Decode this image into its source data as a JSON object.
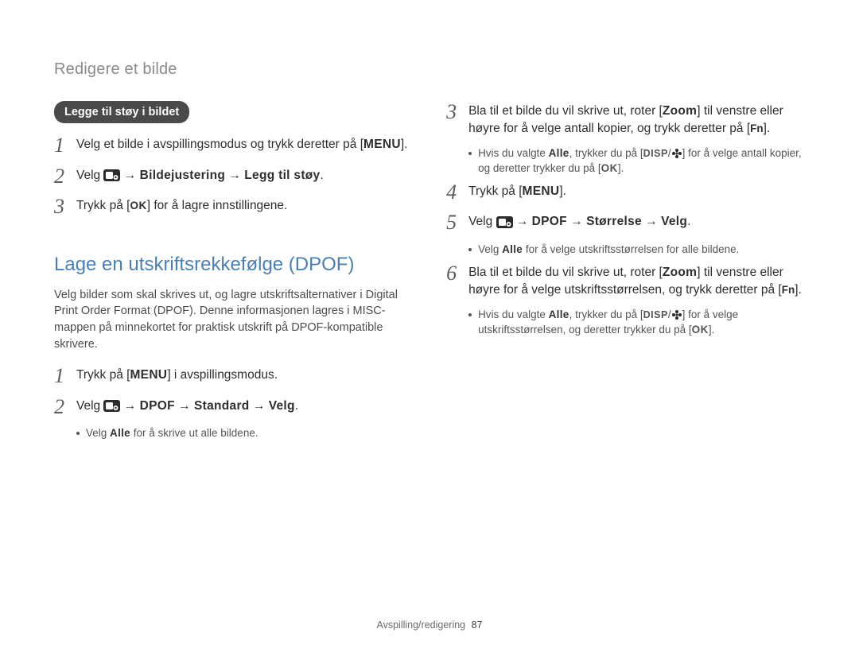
{
  "header": {
    "title": "Redigere et bilde"
  },
  "left": {
    "pill": "Legge til støy i bildet",
    "steps": [
      {
        "num": "1",
        "parts": [
          "Velg et bilde i avspillingsmodus og trykk deretter på [",
          {
            "b": "MENU"
          },
          "]."
        ]
      },
      {
        "num": "2",
        "parts": [
          "Velg ",
          {
            "icon": "tool"
          },
          " → ",
          {
            "b": "Bildejustering"
          },
          " → ",
          {
            "b": "Legg til støy"
          },
          "."
        ]
      },
      {
        "num": "3",
        "parts": [
          "Trykk på [",
          {
            "icon": "ok"
          },
          "] for å lagre innstillingene."
        ]
      }
    ],
    "section": {
      "title": "Lage en utskriftsrekkefølge (DPOF)",
      "intro": "Velg bilder som skal skrives ut, og lagre utskriftsalternativer i Digital Print Order Format (DPOF). Denne informasjonen lagres i MISC-mappen på minnekortet for praktisk utskrift på DPOF-kompatible skrivere.",
      "steps": [
        {
          "num": "1",
          "parts": [
            "Trykk på [",
            {
              "b": "MENU"
            },
            "] i avspillingsmodus."
          ]
        },
        {
          "num": "2",
          "parts": [
            "Velg ",
            {
              "icon": "tool2"
            },
            " → ",
            {
              "b": "DPOF"
            },
            " → ",
            {
              "b": "Standard"
            },
            " → ",
            {
              "b": "Velg"
            },
            "."
          ],
          "sub": [
            [
              "Velg ",
              {
                "b": "Alle"
              },
              " for å skrive ut alle bildene."
            ]
          ]
        }
      ]
    }
  },
  "right": {
    "steps": [
      {
        "num": "3",
        "parts": [
          "Bla til et bilde du vil skrive ut, roter [",
          {
            "b": "Zoom"
          },
          "] til venstre eller høyre for å velge antall kopier, og trykk deretter på [",
          {
            "icon": "fn"
          },
          "]."
        ],
        "sub": [
          [
            "Hvis du valgte ",
            {
              "b": "Alle"
            },
            ", trykker du på [",
            {
              "icon": "disp"
            },
            "/",
            {
              "icon": "flower"
            },
            "] for å velge antall kopier, og deretter trykker du på [",
            {
              "icon": "ok"
            },
            "]."
          ]
        ]
      },
      {
        "num": "4",
        "parts": [
          "Trykk på [",
          {
            "b": "MENU"
          },
          "]."
        ]
      },
      {
        "num": "5",
        "parts": [
          "Velg ",
          {
            "icon": "tool2"
          },
          " → ",
          {
            "b": "DPOF"
          },
          " → ",
          {
            "b": "Størrelse"
          },
          " → ",
          {
            "b": "Velg"
          },
          "."
        ],
        "sub": [
          [
            "Velg ",
            {
              "b": "Alle"
            },
            " for å velge utskriftsstørrelsen for alle bildene."
          ]
        ]
      },
      {
        "num": "6",
        "parts": [
          "Bla til et bilde du vil skrive ut, roter [",
          {
            "b": "Zoom"
          },
          "] til venstre eller høyre for å velge utskriftsstørrelsen, og trykk deretter på [",
          {
            "icon": "fn"
          },
          "]."
        ],
        "sub": [
          [
            "Hvis du valgte ",
            {
              "b": "Alle"
            },
            ", trykker du på [",
            {
              "icon": "disp"
            },
            "/",
            {
              "icon": "flower"
            },
            "] for å velge utskriftsstørrelsen, og deretter trykker du på [",
            {
              "icon": "ok"
            },
            "]."
          ]
        ]
      }
    ]
  },
  "footer": {
    "section": "Avspilling/redigering",
    "page": "87"
  },
  "colors": {
    "heading": "#4a7fb5",
    "pill_bg": "#4a4a4a"
  }
}
